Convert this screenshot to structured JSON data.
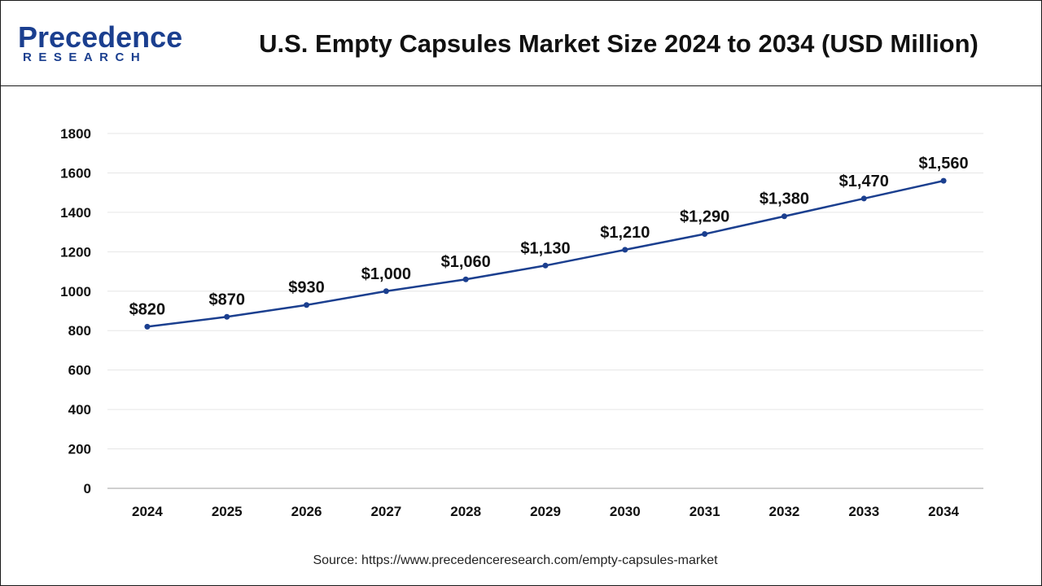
{
  "header": {
    "logo_main": "Precedence",
    "logo_sub": "RESEARCH",
    "title": "U.S. Empty Capsules Market Size 2024 to 2034 (USD Million)"
  },
  "chart_data": {
    "type": "line",
    "title": "U.S. Empty Capsules Market Size 2024 to 2034 (USD Million)",
    "xlabel": "",
    "ylabel": "",
    "categories": [
      "2024",
      "2025",
      "2026",
      "2027",
      "2028",
      "2029",
      "2030",
      "2031",
      "2032",
      "2033",
      "2034"
    ],
    "series": [
      {
        "name": "U.S. Empty Capsules Market Size",
        "values": [
          820,
          870,
          930,
          1000,
          1060,
          1130,
          1210,
          1290,
          1380,
          1470,
          1560
        ],
        "labels": [
          "$820",
          "$870",
          "$930",
          "$1,000",
          "$1,060",
          "$1,130",
          "$1,210",
          "$1,290",
          "$1,380",
          "$1,470",
          "$1,560"
        ]
      }
    ],
    "ylim": [
      0,
      1800
    ],
    "yticks": [
      0,
      200,
      400,
      600,
      800,
      1000,
      1200,
      1400,
      1600,
      1800
    ],
    "grid": true,
    "legend": "none",
    "colors": {
      "line": "#1b3f8f",
      "grid": "#e6e6e6",
      "axis": "#bfbfbf",
      "text": "#111111"
    }
  },
  "footer": {
    "source": "Source: https://www.precedenceresearch.com/empty-capsules-market"
  }
}
